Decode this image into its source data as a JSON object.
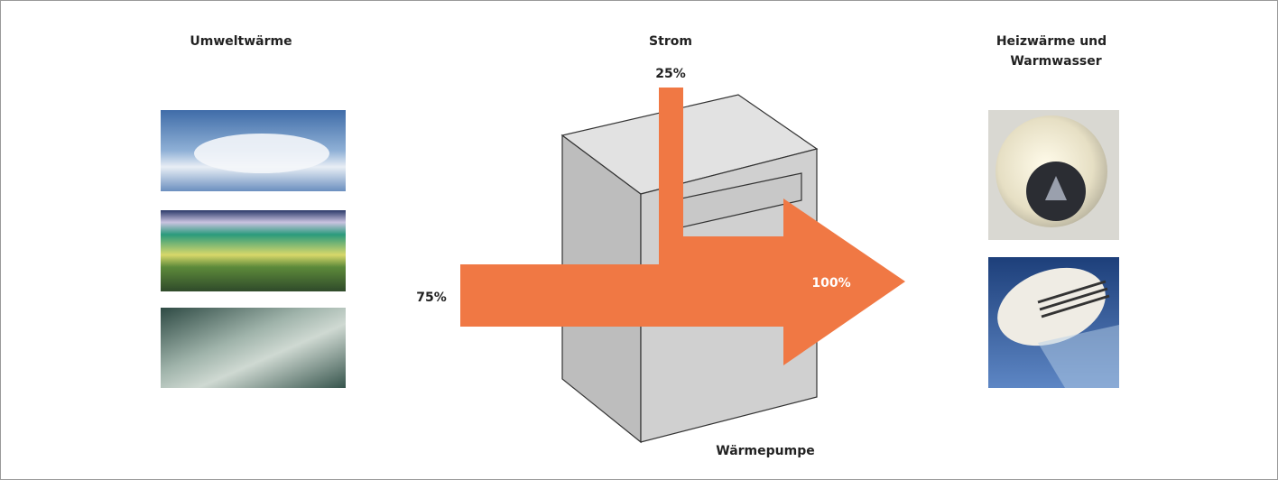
{
  "labels": {
    "source": "Umweltwärme",
    "power": "Strom",
    "output_line1": "Heizwärme und",
    "output_line2": "Warmwasser",
    "device": "Wärmepumpe"
  },
  "flows": {
    "power_share": "25%",
    "environment_share": "75%",
    "output_share": "100%"
  }
}
